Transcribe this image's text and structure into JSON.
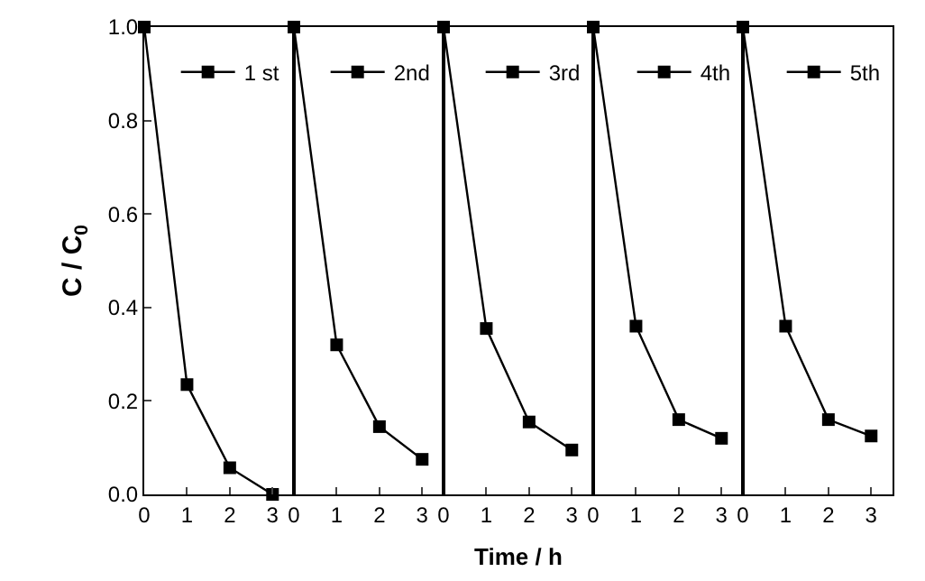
{
  "chart_data": [
    {
      "type": "line",
      "ylabel": "C / C$_{0}$",
      "x": [
        0,
        1,
        2,
        3
      ],
      "series": [
        {
          "name": "1 st",
          "color": "#000000",
          "values": [
            1.0,
            0.235,
            0.057,
            0.0
          ]
        }
      ],
      "xlim": [
        0,
        3.5
      ],
      "xticks": [
        0,
        1,
        2,
        3
      ],
      "ylim": [
        0,
        1
      ],
      "yticks": [
        {
          "value": 0,
          "label": "0.0"
        },
        0.2,
        0.4,
        0.6,
        0.8,
        {
          "value": 1,
          "label": "1.0"
        }
      ],
      "marker": "square",
      "line_style": "solid",
      "legend": "top right",
      "grid": false
    },
    {
      "type": "line",
      "x": [
        0,
        1,
        2,
        3
      ],
      "series": [
        {
          "name": "2nd",
          "color": "#000000",
          "values": [
            1.0,
            0.32,
            0.145,
            0.075
          ]
        }
      ],
      "xlim": [
        0,
        3.5
      ],
      "xticks": [
        0,
        1,
        2,
        3
      ],
      "ylim": [
        0,
        1
      ],
      "tick_labels": "x",
      "marker": "square",
      "line_style": "solid",
      "legend": "top right",
      "grid": false
    },
    {
      "type": "line",
      "xlabel": "Time / h",
      "x": [
        0,
        1,
        2,
        3
      ],
      "series": [
        {
          "name": "3rd",
          "color": "#000000",
          "values": [
            1.0,
            0.355,
            0.155,
            0.095
          ]
        }
      ],
      "xlim": [
        0,
        3.5
      ],
      "xticks": [
        0,
        1,
        2,
        3
      ],
      "ylim": [
        0,
        1
      ],
      "tick_labels": "x",
      "marker": "square",
      "line_style": "solid",
      "legend": "top right",
      "grid": false
    },
    {
      "type": "line",
      "x": [
        0,
        1,
        2,
        3
      ],
      "series": [
        {
          "name": "4th",
          "color": "#000000",
          "values": [
            1.0,
            0.36,
            0.16,
            0.12
          ]
        }
      ],
      "xlim": [
        0,
        3.5
      ],
      "xticks": [
        0,
        1,
        2,
        3
      ],
      "ylim": [
        0,
        1
      ],
      "tick_labels": "x",
      "marker": "square",
      "line_style": "solid",
      "legend": "top right",
      "grid": false
    },
    {
      "type": "line",
      "x": [
        0,
        1,
        2,
        3
      ],
      "series": [
        {
          "name": "5th",
          "color": "#000000",
          "values": [
            1.0,
            0.36,
            0.16,
            0.125
          ]
        }
      ],
      "xlim": [
        0,
        3.5
      ],
      "xticks": [
        0,
        1,
        2,
        3
      ],
      "ylim": [
        0,
        1
      ],
      "tick_labels": "x",
      "marker": "square",
      "line_style": "solid",
      "legend": "top right",
      "grid": false
    }
  ]
}
